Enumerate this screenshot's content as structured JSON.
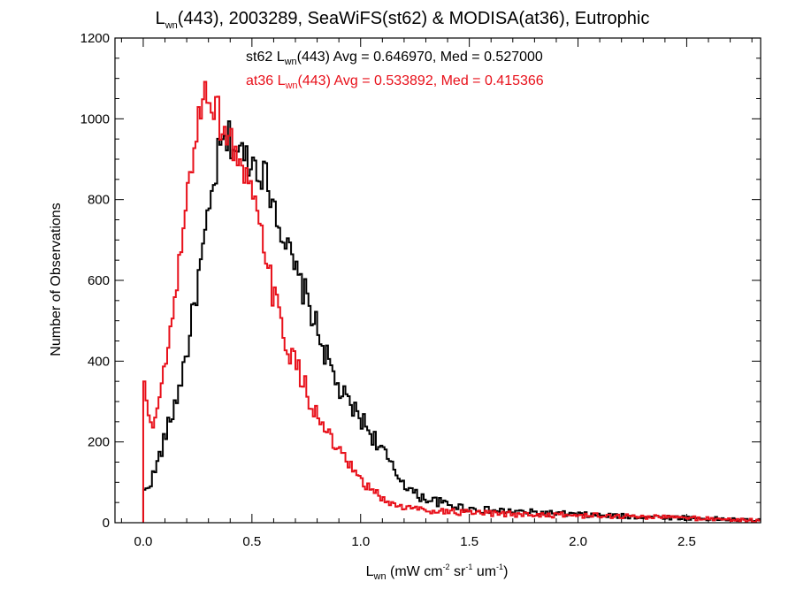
{
  "chart_data": {
    "type": "line",
    "title": {
      "main": "L",
      "main_sub": "wn",
      "rest": "(443), 2003289, SeaWiFS(st62) & MODISA(at36), Eutrophic"
    },
    "xlabel": {
      "main": "L",
      "main_sub": "wn",
      "p1": " (mW cm",
      "sup1": "-2",
      "p2": " sr",
      "sup2": "-1",
      "p3": " um",
      "sup3": "-1",
      "p4": ")"
    },
    "ylabel": "Number of Observations",
    "xlim": [
      -0.13,
      2.84
    ],
    "ylim": [
      0,
      1200
    ],
    "xticks": [
      "0.0",
      "0.5",
      "1.0",
      "1.5",
      "2.0",
      "2.5"
    ],
    "xtick_values": [
      0,
      0.5,
      1,
      1.5,
      2,
      2.5
    ],
    "yticks": [
      "0",
      "200",
      "400",
      "600",
      "800",
      "1000",
      "1200"
    ],
    "ytick_values": [
      0,
      200,
      400,
      600,
      800,
      1000,
      1200
    ],
    "grid": false,
    "legend_placement": "top-center",
    "series": [
      {
        "legend_prefix": "st62 L",
        "legend_sub": "wn",
        "legend_suffix": "(443) Avg = 0.646970, Med = 0.527000",
        "color": "#000000",
        "x": [
          0,
          0.05,
          0.1,
          0.15,
          0.2,
          0.25,
          0.3,
          0.35,
          0.4,
          0.45,
          0.5,
          0.55,
          0.6,
          0.65,
          0.7,
          0.75,
          0.8,
          0.85,
          0.9,
          0.95,
          1.0,
          1.05,
          1.1,
          1.15,
          1.2,
          1.25,
          1.3,
          1.4,
          1.5,
          1.6,
          1.8,
          2.0,
          2.2,
          2.4,
          2.6,
          2.84
        ],
        "y": [
          70,
          120,
          210,
          300,
          420,
          590,
          750,
          920,
          950,
          910,
          900,
          870,
          800,
          700,
          620,
          560,
          480,
          400,
          330,
          290,
          260,
          220,
          180,
          130,
          100,
          70,
          60,
          45,
          35,
          30,
          25,
          20,
          16,
          14,
          10,
          5
        ]
      },
      {
        "legend_prefix": "at36 L",
        "legend_sub": "wn",
        "legend_suffix": "(443) Avg = 0.533892, Med = 0.415366",
        "color": "#e8101a",
        "x": [
          0,
          0.005,
          0.01,
          0.03,
          0.05,
          0.08,
          0.1,
          0.15,
          0.2,
          0.25,
          0.3,
          0.35,
          0.4,
          0.45,
          0.5,
          0.55,
          0.6,
          0.65,
          0.7,
          0.75,
          0.8,
          0.85,
          0.9,
          0.95,
          1.0,
          1.05,
          1.1,
          1.15,
          1.2,
          1.3,
          1.4,
          1.5,
          1.6,
          1.8,
          2.0,
          2.2,
          2.4,
          2.6,
          2.84
        ],
        "y": [
          0,
          350,
          290,
          260,
          250,
          310,
          380,
          560,
          790,
          1000,
          1080,
          1000,
          950,
          880,
          800,
          700,
          560,
          460,
          390,
          330,
          260,
          220,
          170,
          140,
          100,
          80,
          60,
          45,
          38,
          32,
          28,
          24,
          22,
          20,
          18,
          16,
          14,
          10,
          5
        ]
      }
    ]
  }
}
